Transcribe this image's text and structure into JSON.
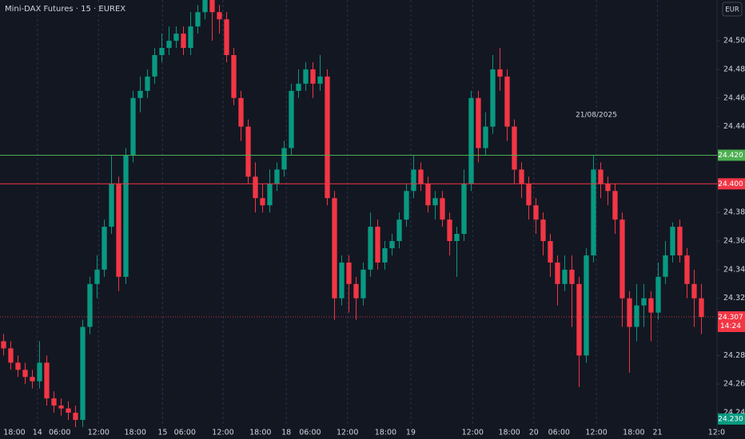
{
  "chart_data": {
    "type": "candlestick",
    "title": "Mini-DAX Futures · 15 · EUREX",
    "currency": "EUR",
    "annotation": "21/08/2025",
    "up_color": "#089981",
    "down_color": "#f23645",
    "ylim": [
      24.23,
      24.5285
    ],
    "yticks": [
      {
        "value": 24.24,
        "label": "24.240"
      },
      {
        "value": 24.26,
        "label": "24.260"
      },
      {
        "value": 24.28,
        "label": "24.280"
      },
      {
        "value": 24.3,
        "label": "24.300"
      },
      {
        "value": 24.32,
        "label": "24.320"
      },
      {
        "value": 24.34,
        "label": "24.340"
      },
      {
        "value": 24.36,
        "label": "24.360"
      },
      {
        "value": 24.38,
        "label": "24.380"
      },
      {
        "value": 24.4,
        "label": "24.400"
      },
      {
        "value": 24.42,
        "label": "24.420"
      },
      {
        "value": 24.44,
        "label": "24.440"
      },
      {
        "value": 24.46,
        "label": "24.460"
      },
      {
        "value": 24.48,
        "label": "24.480"
      },
      {
        "value": 24.5,
        "label": "24.500"
      }
    ],
    "xlim": [
      0,
      99.67
    ],
    "xticks": [
      {
        "value": 2,
        "label": "18:00"
      },
      {
        "value": 5.2,
        "label": "14",
        "grid": true
      },
      {
        "value": 8.3,
        "label": "06:00"
      },
      {
        "value": 13.7,
        "label": "12:00",
        "grid": true
      },
      {
        "value": 18.8,
        "label": "18:00"
      },
      {
        "value": 22.6,
        "label": "15",
        "grid": true
      },
      {
        "value": 25.7,
        "label": "06:00"
      },
      {
        "value": 31,
        "label": "12:00",
        "grid": true
      },
      {
        "value": 36.2,
        "label": "18:00"
      },
      {
        "value": 39.8,
        "label": "18",
        "grid": true
      },
      {
        "value": 43.1,
        "label": "06:00"
      },
      {
        "value": 48.3,
        "label": "12:00",
        "grid": true
      },
      {
        "value": 53.6,
        "label": "18:00"
      },
      {
        "value": 57.1,
        "label": "19",
        "grid": true
      },
      {
        "value": 65.7,
        "label": "12:00",
        "grid": true
      },
      {
        "value": 70.8,
        "label": "18:00"
      },
      {
        "value": 74.2,
        "label": "20",
        "grid": true
      },
      {
        "value": 77.7,
        "label": "06:00"
      },
      {
        "value": 82.9,
        "label": "12:00",
        "grid": true
      },
      {
        "value": 88.1,
        "label": "18:00"
      },
      {
        "value": 91.4,
        "label": "21",
        "grid": true
      },
      {
        "value": 99.6,
        "label": "12:0"
      }
    ],
    "hlines": [
      {
        "value": 24.42,
        "label": "24.420",
        "color": "#4caf50"
      },
      {
        "value": 24.4,
        "label": "24.400",
        "color": "#f23645"
      }
    ],
    "last_price": {
      "value": 24.307,
      "label": "24.307",
      "time": "14:24",
      "color": "#f23645"
    },
    "low_marker": {
      "value": 24.23,
      "label": "24.230",
      "color": "#089981"
    },
    "open": [
      24.29,
      24.285,
      24.275,
      24.27,
      24.265,
      24.262,
      24.275,
      24.25,
      24.245,
      24.243,
      24.24,
      24.235,
      24.3,
      24.33,
      24.34,
      24.37,
      24.4,
      24.335,
      24.42,
      24.46,
      24.465,
      24.475,
      24.49,
      24.495,
      24.5,
      24.505,
      24.495,
      24.51,
      24.52,
      24.53,
      24.52,
      24.515,
      24.49,
      24.46,
      24.44,
      24.405,
      24.39,
      24.385,
      24.4,
      24.41,
      24.425,
      24.465,
      24.47,
      24.48,
      24.47,
      24.475,
      24.39,
      24.32,
      24.345,
      24.33,
      24.32,
      24.34,
      24.37,
      24.345,
      24.355,
      24.36,
      24.375,
      24.395,
      24.41,
      24.4,
      24.385,
      24.39,
      24.375,
      24.36,
      24.365,
      24.4,
      24.46,
      24.425,
      24.44,
      24.48,
      24.475,
      24.44,
      24.41,
      24.4,
      24.385,
      24.375,
      24.36,
      24.345,
      24.33,
      24.34,
      24.33,
      24.28,
      24.35,
      24.41,
      24.4,
      24.395,
      24.375,
      24.32,
      24.3,
      24.315,
      24.32,
      24.31,
      24.335,
      24.35,
      24.37,
      24.35,
      24.33,
      24.32
    ],
    "high": [
      24.295,
      24.29,
      24.28,
      24.275,
      24.27,
      24.29,
      24.28,
      24.255,
      24.25,
      24.248,
      24.245,
      24.305,
      24.335,
      24.35,
      24.375,
      24.42,
      24.405,
      24.425,
      24.465,
      24.475,
      24.48,
      24.495,
      24.505,
      24.51,
      24.51,
      24.51,
      24.52,
      24.525,
      24.535,
      24.535,
      24.525,
      24.52,
      24.495,
      24.465,
      24.445,
      24.415,
      24.4,
      24.41,
      24.415,
      24.43,
      24.47,
      24.48,
      24.485,
      24.485,
      24.49,
      24.48,
      24.395,
      24.35,
      24.35,
      24.335,
      24.345,
      24.38,
      24.375,
      24.36,
      24.365,
      24.38,
      24.4,
      24.42,
      24.415,
      24.405,
      24.395,
      24.395,
      24.38,
      24.37,
      24.41,
      24.465,
      24.465,
      24.45,
      24.49,
      24.495,
      24.48,
      24.445,
      24.415,
      24.405,
      24.39,
      24.38,
      24.365,
      24.35,
      24.35,
      24.35,
      24.335,
      24.355,
      24.42,
      24.415,
      24.405,
      24.4,
      24.38,
      24.325,
      24.33,
      24.33,
      24.325,
      24.345,
      24.36,
      24.373,
      24.375,
      24.355,
      24.34,
      24.33
    ],
    "low": [
      24.28,
      24.27,
      24.265,
      24.26,
      24.257,
      24.257,
      24.245,
      24.24,
      24.238,
      24.235,
      24.23,
      24.23,
      24.295,
      24.32,
      24.335,
      24.365,
      24.325,
      24.33,
      24.415,
      24.45,
      24.46,
      24.47,
      24.485,
      24.49,
      24.495,
      24.49,
      24.49,
      24.505,
      24.515,
      24.5,
      24.505,
      24.485,
      24.455,
      24.43,
      24.4,
      24.38,
      24.38,
      24.38,
      24.395,
      24.405,
      24.42,
      24.46,
      24.465,
      24.46,
      24.465,
      24.385,
      24.305,
      24.315,
      24.31,
      24.305,
      24.315,
      24.335,
      24.34,
      24.34,
      24.35,
      24.355,
      24.37,
      24.39,
      24.395,
      24.38,
      24.375,
      24.37,
      24.35,
      24.335,
      24.36,
      24.395,
      24.415,
      24.42,
      24.435,
      24.465,
      24.43,
      24.4,
      24.39,
      24.375,
      24.365,
      24.35,
      24.335,
      24.315,
      24.325,
      24.3,
      24.258,
      24.275,
      24.345,
      24.39,
      24.385,
      24.365,
      24.3,
      24.268,
      24.29,
      24.3,
      24.29,
      24.305,
      24.33,
      24.345,
      24.345,
      24.32,
      24.3,
      24.295
    ],
    "close": [
      24.285,
      24.275,
      24.27,
      24.265,
      24.262,
      24.275,
      24.25,
      24.245,
      24.243,
      24.24,
      24.235,
      24.3,
      24.33,
      24.34,
      24.37,
      24.4,
      24.335,
      24.42,
      24.46,
      24.465,
      24.475,
      24.49,
      24.495,
      24.5,
      24.505,
      24.495,
      24.51,
      24.52,
      24.53,
      24.52,
      24.515,
      24.49,
      24.46,
      24.44,
      24.405,
      24.39,
      24.385,
      24.4,
      24.41,
      24.425,
      24.465,
      24.47,
      24.48,
      24.47,
      24.475,
      24.39,
      24.32,
      24.345,
      24.33,
      24.32,
      24.34,
      24.37,
      24.345,
      24.355,
      24.36,
      24.375,
      24.395,
      24.41,
      24.4,
      24.385,
      24.39,
      24.375,
      24.36,
      24.365,
      24.4,
      24.46,
      24.425,
      24.44,
      24.48,
      24.475,
      24.44,
      24.41,
      24.4,
      24.385,
      24.375,
      24.36,
      24.345,
      24.33,
      24.34,
      24.33,
      24.28,
      24.35,
      24.41,
      24.4,
      24.395,
      24.375,
      24.32,
      24.3,
      24.315,
      24.32,
      24.31,
      24.335,
      24.35,
      24.37,
      24.35,
      24.33,
      24.32,
      24.307
    ]
  }
}
